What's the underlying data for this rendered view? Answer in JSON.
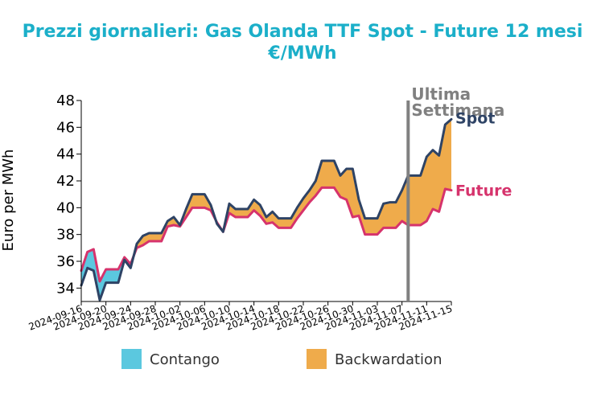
{
  "chart_data": {
    "type": "line",
    "title": "Prezzi giornalieri: Gas Olanda TTF Spot - Future 12 mesi",
    "subtitle": "€/MWh",
    "xlabel": "",
    "ylabel": "Euro per MWh",
    "ylim": [
      33,
      48
    ],
    "yticks": [
      34,
      36,
      38,
      40,
      42,
      44,
      46,
      48
    ],
    "xticks": [
      "2024-09-16",
      "2024-09-20",
      "2024-09-24",
      "2024-09-28",
      "2024-10-02",
      "2024-10-06",
      "2024-10-10",
      "2024-10-14",
      "2024-10-18",
      "2024-10-22",
      "2024-10-26",
      "2024-10-30",
      "2024-11-03",
      "2024-11-07",
      "2024-11-11",
      "2024-11-15"
    ],
    "x": [
      "2024-09-16",
      "2024-09-17",
      "2024-09-18",
      "2024-09-19",
      "2024-09-20",
      "2024-09-21",
      "2024-09-22",
      "2024-09-23",
      "2024-09-24",
      "2024-09-25",
      "2024-09-26",
      "2024-09-27",
      "2024-09-28",
      "2024-09-29",
      "2024-09-30",
      "2024-10-01",
      "2024-10-02",
      "2024-10-03",
      "2024-10-04",
      "2024-10-05",
      "2024-10-06",
      "2024-10-07",
      "2024-10-08",
      "2024-10-09",
      "2024-10-10",
      "2024-10-11",
      "2024-10-12",
      "2024-10-13",
      "2024-10-14",
      "2024-10-15",
      "2024-10-16",
      "2024-10-17",
      "2024-10-18",
      "2024-10-19",
      "2024-10-20",
      "2024-10-21",
      "2024-10-22",
      "2024-10-23",
      "2024-10-24",
      "2024-10-25",
      "2024-10-26",
      "2024-10-27",
      "2024-10-28",
      "2024-10-29",
      "2024-10-30",
      "2024-10-31",
      "2024-11-01",
      "2024-11-02",
      "2024-11-03",
      "2024-11-04",
      "2024-11-05",
      "2024-11-06",
      "2024-11-07",
      "2024-11-08",
      "2024-11-09",
      "2024-11-10",
      "2024-11-11",
      "2024-11-12",
      "2024-11-13",
      "2024-11-14",
      "2024-11-15"
    ],
    "series": [
      {
        "name": "Spot",
        "color": "#2e4365",
        "values": [
          34.2,
          35.5,
          35.3,
          33.1,
          34.4,
          34.4,
          34.4,
          36.1,
          35.5,
          37.3,
          37.9,
          38.1,
          38.1,
          38.1,
          39.0,
          39.3,
          38.7,
          39.9,
          41.0,
          41.0,
          41.0,
          40.2,
          38.8,
          38.2,
          40.3,
          39.9,
          39.9,
          39.9,
          40.6,
          40.2,
          39.3,
          39.7,
          39.2,
          39.2,
          39.2,
          40.0,
          40.7,
          41.3,
          42.0,
          43.5,
          43.5,
          43.5,
          42.4,
          42.9,
          42.9,
          40.6,
          39.2,
          39.2,
          39.2,
          40.3,
          40.4,
          40.4,
          41.3,
          42.4,
          42.4,
          42.4,
          43.8,
          44.3,
          43.9,
          46.2,
          46.6
        ]
      },
      {
        "name": "Future",
        "color": "#d6336c",
        "values": [
          35.3,
          36.7,
          36.9,
          34.5,
          35.4,
          35.4,
          35.4,
          36.3,
          35.8,
          37.0,
          37.2,
          37.5,
          37.5,
          37.5,
          38.6,
          38.7,
          38.6,
          39.3,
          40.0,
          40.0,
          40.0,
          39.8,
          38.9,
          38.2,
          39.6,
          39.3,
          39.3,
          39.3,
          39.8,
          39.4,
          38.8,
          38.9,
          38.5,
          38.5,
          38.5,
          39.2,
          39.8,
          40.4,
          40.9,
          41.5,
          41.5,
          41.5,
          40.8,
          40.6,
          39.3,
          39.4,
          38.0,
          38.0,
          38.0,
          38.5,
          38.5,
          38.5,
          39.0,
          38.7,
          38.7,
          38.7,
          39.0,
          39.9,
          39.7,
          41.4,
          41.3
        ]
      }
    ],
    "annotations": [
      {
        "text": "Ultima",
        "at": "2024-11-08"
      },
      {
        "text": "Settimana",
        "at": "2024-11-08"
      }
    ],
    "vline": "2024-11-08",
    "fills": [
      {
        "name": "Contango",
        "color": "#5bc8df",
        "rule": "Future > Spot"
      },
      {
        "name": "Backwardation",
        "color": "#efab4b",
        "rule": "Spot > Future"
      }
    ],
    "legend_position": "bottom",
    "grid": false
  }
}
